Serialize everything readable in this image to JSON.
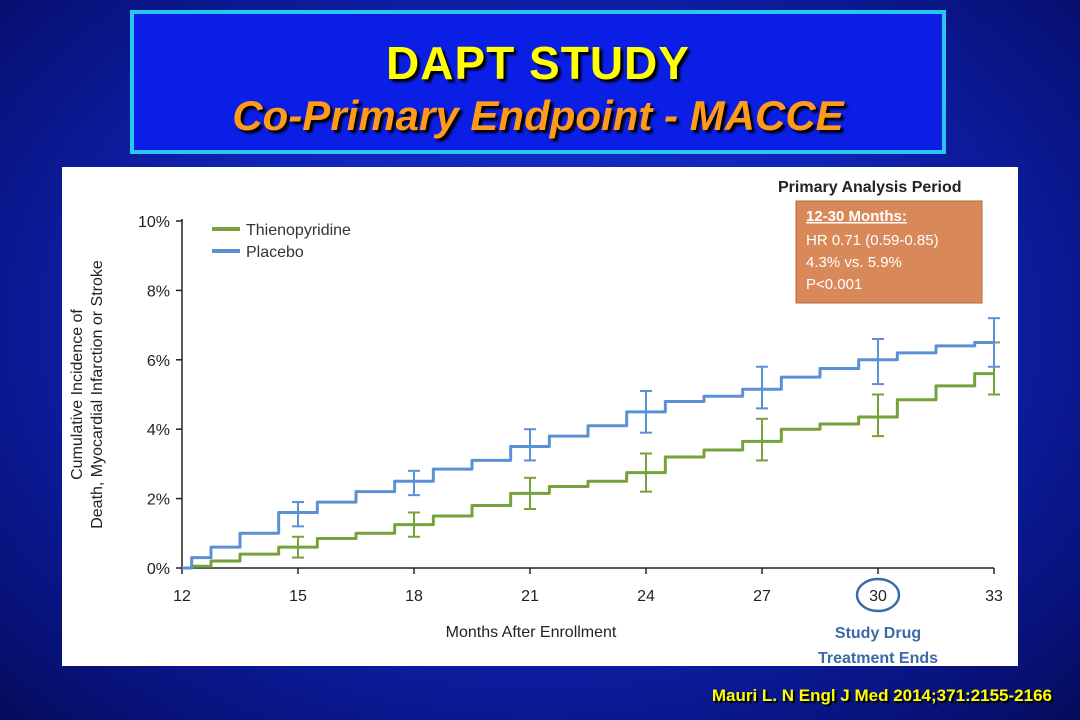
{
  "slide": {
    "title": "DAPT STUDY",
    "subtitle": "Co-Primary Endpoint - MACCE",
    "citation": "Mauri L. N Engl J Med 2014;371:2155-2166"
  },
  "chart_data": {
    "type": "line",
    "xlabel": "Months After Enrollment",
    "ylabel_lines": [
      "Cumulative Incidence of",
      "Death, Myocardial Infarction or Stroke"
    ],
    "xlim": [
      12,
      33
    ],
    "ylim": [
      0,
      10
    ],
    "x_ticks": [
      12,
      15,
      18,
      21,
      24,
      27,
      30,
      33
    ],
    "y_ticks": [
      0,
      2,
      4,
      6,
      8,
      10
    ],
    "y_tick_labels": [
      "0%",
      "2%",
      "4%",
      "6%",
      "8%",
      "10%"
    ],
    "legend_position": "top-left",
    "series": [
      {
        "name": "Thienopyridine",
        "color": "#76a23a",
        "x": [
          12,
          12.5,
          13,
          14,
          15,
          16,
          17,
          18,
          19,
          20,
          21,
          22,
          23,
          24,
          25,
          26,
          27,
          28,
          29,
          30,
          31,
          32,
          33
        ],
        "values": [
          0,
          0.05,
          0.2,
          0.4,
          0.6,
          0.85,
          1.0,
          1.25,
          1.5,
          1.8,
          2.15,
          2.35,
          2.5,
          2.75,
          3.2,
          3.4,
          3.65,
          4.0,
          4.15,
          4.35,
          4.85,
          5.25,
          5.6
        ],
        "error_bars": [
          {
            "x": 15,
            "low": 0.3,
            "high": 0.9
          },
          {
            "x": 18,
            "low": 0.9,
            "high": 1.6
          },
          {
            "x": 21,
            "low": 1.7,
            "high": 2.6
          },
          {
            "x": 24,
            "low": 2.2,
            "high": 3.3
          },
          {
            "x": 27,
            "low": 3.1,
            "high": 4.3
          },
          {
            "x": 30,
            "low": 3.8,
            "high": 5.0
          },
          {
            "x": 33,
            "low": 5.0,
            "high": 6.5
          }
        ]
      },
      {
        "name": "Placebo",
        "color": "#5b8fd6",
        "x": [
          12,
          12.5,
          13,
          14,
          15,
          16,
          17,
          18,
          19,
          20,
          21,
          22,
          23,
          24,
          25,
          26,
          27,
          28,
          29,
          30,
          31,
          32,
          33
        ],
        "values": [
          0,
          0.3,
          0.6,
          1.0,
          1.6,
          1.9,
          2.2,
          2.5,
          2.85,
          3.1,
          3.5,
          3.8,
          4.1,
          4.5,
          4.8,
          4.95,
          5.15,
          5.5,
          5.75,
          6.0,
          6.2,
          6.4,
          6.5
        ],
        "error_bars": [
          {
            "x": 15,
            "low": 1.2,
            "high": 1.9
          },
          {
            "x": 18,
            "low": 2.1,
            "high": 2.8
          },
          {
            "x": 21,
            "low": 3.1,
            "high": 4.0
          },
          {
            "x": 24,
            "low": 3.9,
            "high": 5.1
          },
          {
            "x": 27,
            "low": 4.6,
            "high": 5.8
          },
          {
            "x": 30,
            "low": 5.3,
            "high": 6.6
          },
          {
            "x": 33,
            "low": 5.8,
            "high": 7.2
          }
        ]
      }
    ],
    "annotation_box": {
      "header": "Primary Analysis Period",
      "title": "12-30 Months:",
      "lines": [
        "HR 0.71 (0.59-0.85)",
        "4.3% vs. 5.9%",
        "P<0.001"
      ],
      "color": "#d9885a"
    },
    "highlight_tick": {
      "x": 30,
      "lines": [
        "Study Drug",
        "Treatment Ends"
      ],
      "color": "#3a6aa8"
    }
  }
}
